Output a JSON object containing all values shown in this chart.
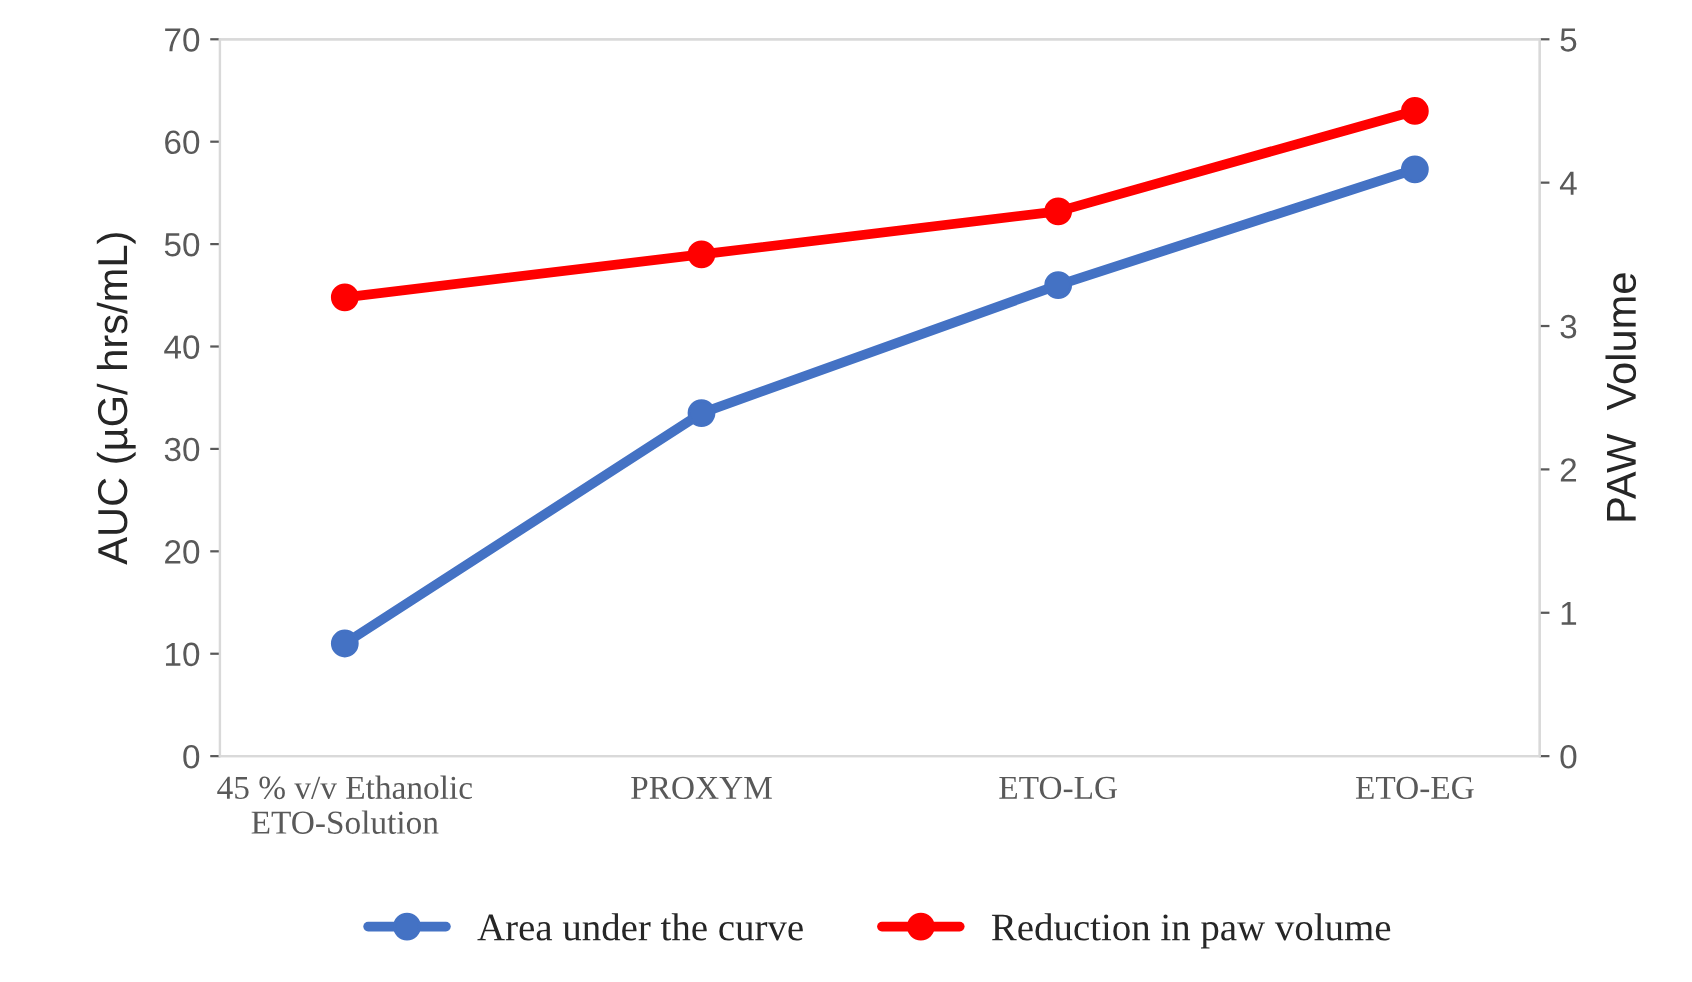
{
  "chart_data": {
    "type": "line",
    "ylabel": "AUC (µG/ hrs/mL)",
    "y2label": "PAW  Volume",
    "categories": [
      "45 % v/v Ethanolic\nETO-Solution",
      "PROXYM",
      "ETO-LG",
      "ETO-EG"
    ],
    "series": [
      {
        "name": "Area under the curve",
        "color": "#4472c4",
        "values": [
          11,
          33.5,
          46,
          57.3
        ]
      },
      {
        "name": "Reduction in paw volume",
        "color": "#ff0000",
        "values": [
          3.2,
          3.5,
          3.8,
          4.5
        ],
        "axis": "y2"
      }
    ],
    "ylim": [
      0,
      70
    ],
    "yticks": [
      0,
      10,
      20,
      30,
      40,
      50,
      60,
      70
    ],
    "y2lim": [
      0,
      5
    ],
    "y2ticks": [
      0,
      1,
      2,
      3,
      4,
      5
    ],
    "marker": "circle",
    "legend": "bottom",
    "grid": false
  }
}
